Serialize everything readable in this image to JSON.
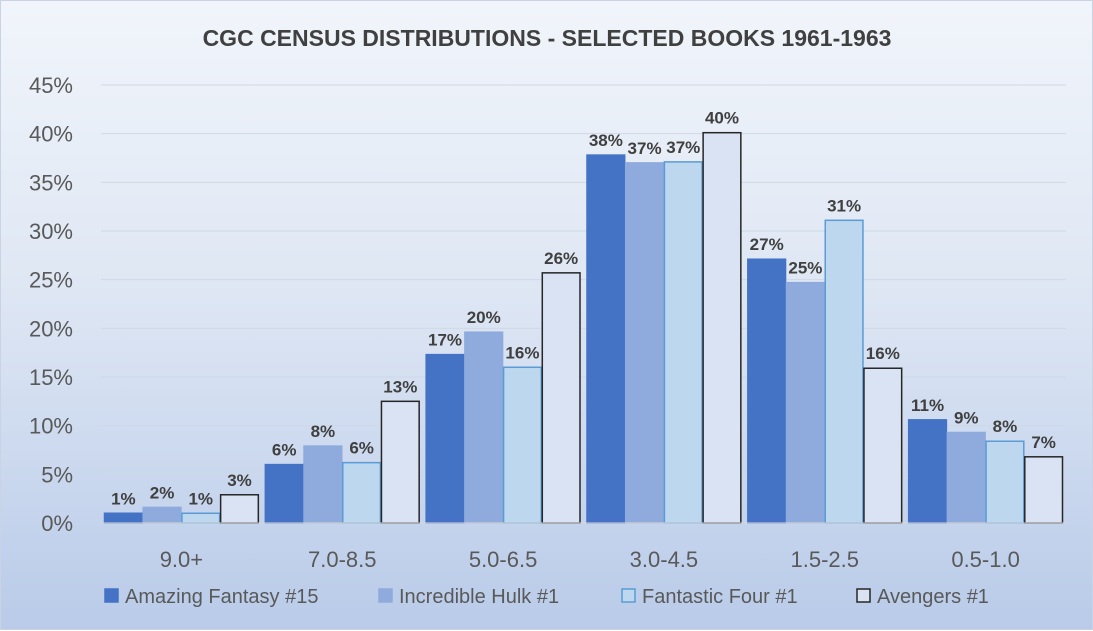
{
  "chart_data": {
    "type": "bar",
    "title": "CGC CENSUS DISTRIBUTIONS - SELECTED BOOKS 1961-1963",
    "xlabel": "",
    "ylabel": "",
    "categories": [
      "9.0+",
      "7.0-8.5",
      "5.0-6.5",
      "3.0-4.5",
      "1.5-2.5",
      "0.5-1.0"
    ],
    "ylim": [
      0,
      45
    ],
    "yticks": [
      0,
      5,
      10,
      15,
      20,
      25,
      30,
      35,
      40,
      45
    ],
    "ytick_labels": [
      "0%",
      "5%",
      "10%",
      "15%",
      "20%",
      "25%",
      "30%",
      "35%",
      "40%",
      "45%"
    ],
    "grid": true,
    "legend_position": "bottom",
    "series": [
      {
        "name": "Amazing Fantasy #15",
        "fill": "#4472c4",
        "stroke": "#4472c4",
        "values": [
          1.0,
          6.0,
          17.3,
          37.8,
          27.1,
          10.6
        ],
        "labels": [
          "1%",
          "6%",
          "17%",
          "38%",
          "27%",
          "11%"
        ]
      },
      {
        "name": "Incredible Hulk #1",
        "fill": "#8faadc",
        "stroke": "#8faadc",
        "values": [
          1.6,
          7.9,
          19.6,
          37.0,
          24.7,
          9.3
        ],
        "labels": [
          "2%",
          "8%",
          "20%",
          "37%",
          "25%",
          "9%"
        ]
      },
      {
        "name": "Fantastic Four #1",
        "fill": "#bdd7ee",
        "stroke": "#5b9bd5",
        "values": [
          1.0,
          6.2,
          16.0,
          37.1,
          31.1,
          8.4
        ],
        "labels": [
          "1%",
          "6%",
          "16%",
          "37%",
          "31%",
          "8%"
        ]
      },
      {
        "name": "Avengers #1",
        "fill": "#dae3f3",
        "stroke": "#262626",
        "values": [
          2.9,
          12.5,
          25.7,
          40.1,
          15.9,
          6.8
        ],
        "labels": [
          "3%",
          "13%",
          "26%",
          "40%",
          "16%",
          "7%"
        ]
      }
    ]
  }
}
